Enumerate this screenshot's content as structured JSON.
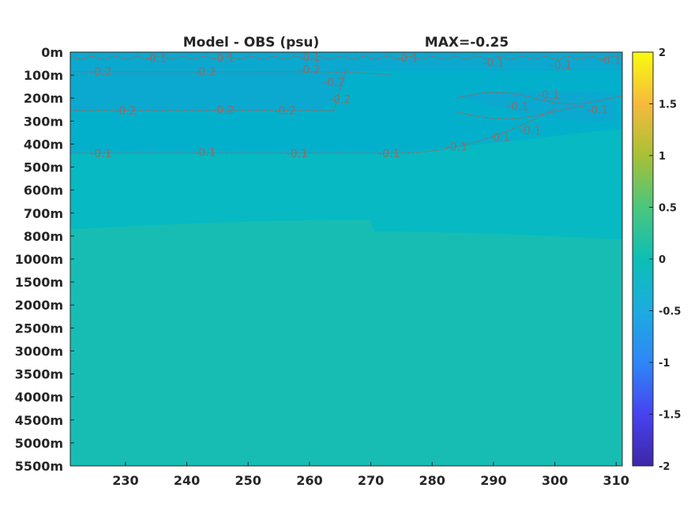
{
  "chart_data": {
    "type": "heatmap",
    "title_left": "Model - OBS (psu)",
    "title_right": "MAX=-0.25",
    "xlabel": "",
    "ylabel": "",
    "x_ticks": [
      230,
      240,
      250,
      260,
      270,
      280,
      290,
      300,
      310
    ],
    "xlim": [
      221,
      311
    ],
    "y_tick_labels": [
      "0m",
      "100m",
      "200m",
      "300m",
      "400m",
      "500m",
      "600m",
      "700m",
      "800m",
      "1000m",
      "1500m",
      "2000m",
      "2500m",
      "3000m",
      "3500m",
      "4000m",
      "4500m",
      "5000m",
      "5500m"
    ],
    "colorbar": {
      "ticks": [
        "2",
        "1.5",
        "1",
        "0.5",
        "0",
        "-0.5",
        "-1",
        "-1.5",
        "-2"
      ],
      "range": [
        -2,
        2
      ],
      "colormap": "parula",
      "colors": [
        "#3e26a8",
        "#4743f0",
        "#2e87f7",
        "#1cace0",
        "#0cbfb5",
        "#4bc67d",
        "#a8c036",
        "#f6ba3c",
        "#f9fb0e"
      ]
    },
    "field_colors": {
      "upper_minus_0_2": "#0ba8cf",
      "upper_minus_0_1": "#03b0cc",
      "mid_zero": "#06b9c2",
      "deep_plus": "#17bdb3"
    },
    "contour_color": "#8a6f6a",
    "contour_labels": [
      {
        "text": "-0.1",
        "x": 235,
        "y_level": 0.25
      },
      {
        "text": "-0.1",
        "x": 246,
        "y_level": 0.25
      },
      {
        "text": "-0.1",
        "x": 260,
        "y_level": 0.2
      },
      {
        "text": "-0.1",
        "x": 276,
        "y_level": 0.25
      },
      {
        "text": "-0.1",
        "x": 290,
        "y_level": 0.45
      },
      {
        "text": "-0.1",
        "x": 301,
        "y_level": 0.55
      },
      {
        "text": "-0.1",
        "x": 309,
        "y_level": 0.35
      },
      {
        "text": "-0.2",
        "x": 226,
        "y_level": 0.85
      },
      {
        "text": "-0.2",
        "x": 243,
        "y_level": 0.85
      },
      {
        "text": "-0.2",
        "x": 260,
        "y_level": 0.75
      },
      {
        "text": "-0.2",
        "x": 264,
        "y_level": 1.3
      },
      {
        "text": "-0.2",
        "x": 230,
        "y_level": 2.55
      },
      {
        "text": "-0.2",
        "x": 246,
        "y_level": 2.5
      },
      {
        "text": "-0.2",
        "x": 256,
        "y_level": 2.55
      },
      {
        "text": "-0.2",
        "x": 265,
        "y_level": 2.05
      },
      {
        "text": "-0.1",
        "x": 299,
        "y_level": 1.85
      },
      {
        "text": "-0.1",
        "x": 294,
        "y_level": 2.35
      },
      {
        "text": "-0.1",
        "x": 307,
        "y_level": 2.5
      },
      {
        "text": "-0.1",
        "x": 226,
        "y_level": 4.4
      },
      {
        "text": "-0.1",
        "x": 243,
        "y_level": 4.35
      },
      {
        "text": "-0.1",
        "x": 258,
        "y_level": 4.4
      },
      {
        "text": "-0.1",
        "x": 273,
        "y_level": 4.4
      },
      {
        "text": "-0.1",
        "x": 284,
        "y_level": 4.1
      },
      {
        "text": "-0.1",
        "x": 291,
        "y_level": 3.7
      },
      {
        "text": "-0.1",
        "x": 296,
        "y_level": 3.4
      }
    ]
  }
}
